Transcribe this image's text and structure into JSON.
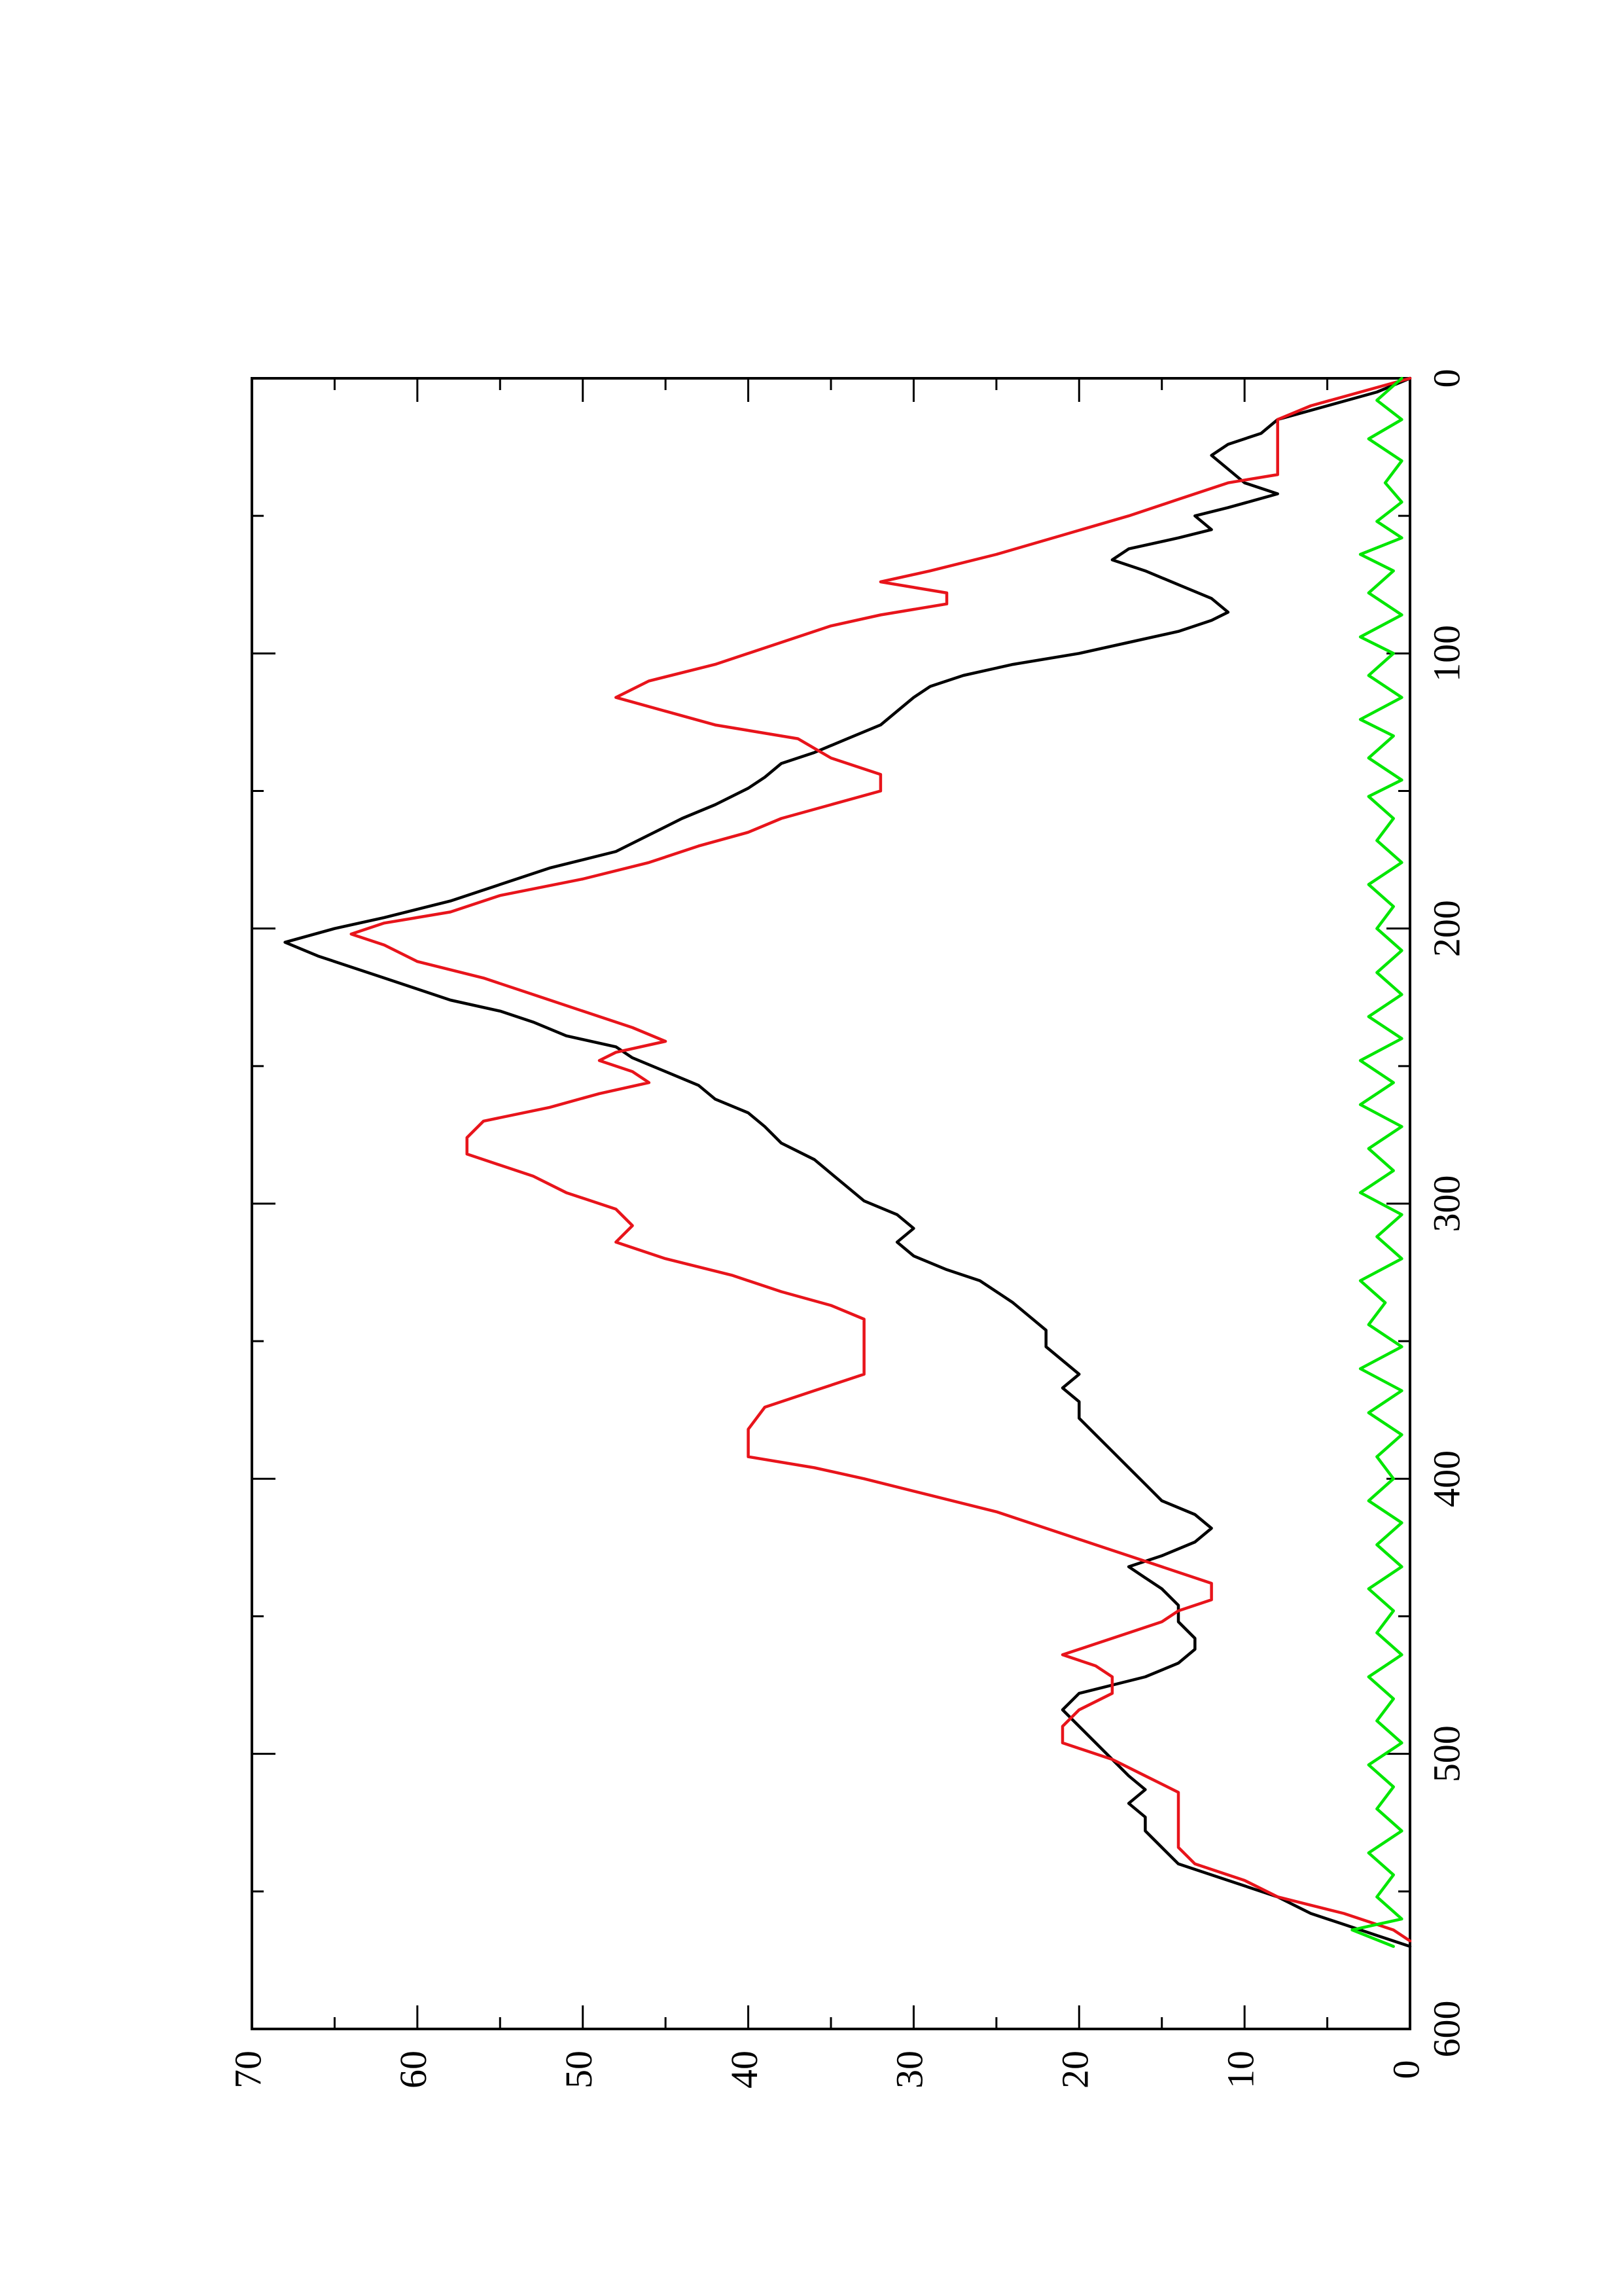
{
  "chart_data": {
    "type": "line",
    "orientation": "rotated-90-ccw",
    "title": "",
    "xlabel": "",
    "ylabel": "",
    "xlim": [
      0,
      600
    ],
    "ylim": [
      0,
      70
    ],
    "x_ticks": [
      0,
      100,
      200,
      300,
      400,
      500,
      600
    ],
    "x_minor_ticks": [
      50,
      150,
      250,
      350,
      450,
      550
    ],
    "y_ticks": [
      0,
      10,
      20,
      30,
      40,
      50,
      60,
      70
    ],
    "y_minor_ticks": [
      5,
      15,
      25,
      35,
      45,
      55,
      65
    ],
    "x_tick_labels": [
      "0",
      "100",
      "200",
      "300",
      "400",
      "500",
      "600"
    ],
    "y_tick_labels": [
      "0",
      "10",
      "20",
      "30",
      "40",
      "50",
      "60",
      "70"
    ],
    "grid": false,
    "legend": "none",
    "series": [
      {
        "color": "#000000",
        "points": [
          [
            0,
            0
          ],
          [
            5,
            2
          ],
          [
            10,
            5
          ],
          [
            15,
            8
          ],
          [
            20,
            9
          ],
          [
            24,
            11
          ],
          [
            28,
            12
          ],
          [
            33,
            11
          ],
          [
            38,
            10
          ],
          [
            42,
            8
          ],
          [
            47,
            11
          ],
          [
            50,
            13
          ],
          [
            55,
            12
          ],
          [
            58,
            14
          ],
          [
            62,
            17
          ],
          [
            66,
            18
          ],
          [
            70,
            16
          ],
          [
            75,
            14
          ],
          [
            80,
            12
          ],
          [
            85,
            11
          ],
          [
            88,
            12
          ],
          [
            92,
            14
          ],
          [
            96,
            17
          ],
          [
            100,
            20
          ],
          [
            104,
            24
          ],
          [
            108,
            27
          ],
          [
            112,
            29
          ],
          [
            116,
            30
          ],
          [
            121,
            31
          ],
          [
            126,
            32
          ],
          [
            131,
            34
          ],
          [
            136,
            36
          ],
          [
            140,
            38
          ],
          [
            145,
            39
          ],
          [
            149,
            40
          ],
          [
            155,
            42
          ],
          [
            160,
            44
          ],
          [
            166,
            46
          ],
          [
            172,
            48
          ],
          [
            178,
            52
          ],
          [
            184,
            55
          ],
          [
            190,
            58
          ],
          [
            196,
            62
          ],
          [
            200,
            65
          ],
          [
            205,
            68
          ],
          [
            210,
            66
          ],
          [
            214,
            64
          ],
          [
            218,
            62
          ],
          [
            222,
            60
          ],
          [
            226,
            58
          ],
          [
            230,
            55
          ],
          [
            234,
            53
          ],
          [
            239,
            51
          ],
          [
            243,
            48
          ],
          [
            247,
            47
          ],
          [
            252,
            45
          ],
          [
            257,
            43
          ],
          [
            262,
            42
          ],
          [
            267,
            40
          ],
          [
            272,
            39
          ],
          [
            278,
            38
          ],
          [
            284,
            36
          ],
          [
            289,
            35
          ],
          [
            294,
            34
          ],
          [
            299,
            33
          ],
          [
            304,
            31
          ],
          [
            309,
            30
          ],
          [
            314,
            31
          ],
          [
            319,
            30
          ],
          [
            324,
            28
          ],
          [
            328,
            26
          ],
          [
            332,
            25
          ],
          [
            336,
            24
          ],
          [
            341,
            23
          ],
          [
            346,
            22
          ],
          [
            352,
            22
          ],
          [
            357,
            21
          ],
          [
            362,
            20
          ],
          [
            367,
            21
          ],
          [
            372,
            20
          ],
          [
            378,
            20
          ],
          [
            384,
            19
          ],
          [
            390,
            18
          ],
          [
            396,
            17
          ],
          [
            402,
            16
          ],
          [
            408,
            15
          ],
          [
            413,
            13
          ],
          [
            418,
            12
          ],
          [
            423,
            13
          ],
          [
            428,
            15
          ],
          [
            432,
            17
          ],
          [
            436,
            16
          ],
          [
            440,
            15
          ],
          [
            446,
            14
          ],
          [
            452,
            14
          ],
          [
            458,
            13
          ],
          [
            462,
            13
          ],
          [
            467,
            14
          ],
          [
            472,
            16
          ],
          [
            478,
            20
          ],
          [
            484,
            21
          ],
          [
            490,
            20
          ],
          [
            496,
            19
          ],
          [
            502,
            18
          ],
          [
            508,
            17
          ],
          [
            513,
            16
          ],
          [
            518,
            17
          ],
          [
            523,
            16
          ],
          [
            528,
            16
          ],
          [
            534,
            15
          ],
          [
            540,
            14
          ],
          [
            546,
            11
          ],
          [
            552,
            8
          ],
          [
            558,
            6
          ],
          [
            562,
            4
          ],
          [
            566,
            2
          ],
          [
            570,
            0
          ]
        ]
      },
      {
        "color": "#e8141b",
        "points": [
          [
            0,
            0
          ],
          [
            5,
            3
          ],
          [
            10,
            6
          ],
          [
            15,
            8
          ],
          [
            20,
            8
          ],
          [
            35,
            8
          ],
          [
            38,
            11
          ],
          [
            44,
            14
          ],
          [
            50,
            17
          ],
          [
            57,
            21
          ],
          [
            64,
            25
          ],
          [
            70,
            29
          ],
          [
            74,
            32
          ],
          [
            78,
            28
          ],
          [
            82,
            28
          ],
          [
            86,
            32
          ],
          [
            90,
            35
          ],
          [
            96,
            38
          ],
          [
            104,
            42
          ],
          [
            110,
            46
          ],
          [
            116,
            48
          ],
          [
            121,
            45
          ],
          [
            126,
            42
          ],
          [
            131,
            37
          ],
          [
            138,
            35
          ],
          [
            144,
            32
          ],
          [
            150,
            32
          ],
          [
            155,
            35
          ],
          [
            160,
            38
          ],
          [
            165,
            40
          ],
          [
            170,
            43
          ],
          [
            176,
            46
          ],
          [
            182,
            50
          ],
          [
            188,
            55
          ],
          [
            194,
            58
          ],
          [
            198,
            62
          ],
          [
            202,
            64
          ],
          [
            206,
            62
          ],
          [
            212,
            60
          ],
          [
            218,
            56
          ],
          [
            224,
            53
          ],
          [
            230,
            50
          ],
          [
            236,
            47
          ],
          [
            241,
            45
          ],
          [
            245,
            48
          ],
          [
            248,
            49
          ],
          [
            252,
            47
          ],
          [
            256,
            46
          ],
          [
            260,
            49
          ],
          [
            265,
            52
          ],
          [
            270,
            56
          ],
          [
            276,
            57
          ],
          [
            282,
            57
          ],
          [
            290,
            53
          ],
          [
            296,
            51
          ],
          [
            302,
            48
          ],
          [
            308,
            47
          ],
          [
            314,
            48
          ],
          [
            320,
            45
          ],
          [
            326,
            41
          ],
          [
            332,
            38
          ],
          [
            337,
            35
          ],
          [
            342,
            33
          ],
          [
            350,
            33
          ],
          [
            362,
            33
          ],
          [
            368,
            36
          ],
          [
            374,
            39
          ],
          [
            382,
            40
          ],
          [
            392,
            40
          ],
          [
            396,
            36
          ],
          [
            400,
            33
          ],
          [
            406,
            29
          ],
          [
            412,
            25
          ],
          [
            418,
            22
          ],
          [
            424,
            19
          ],
          [
            430,
            16
          ],
          [
            434,
            14
          ],
          [
            438,
            12
          ],
          [
            444,
            12
          ],
          [
            448,
            14
          ],
          [
            452,
            15
          ],
          [
            456,
            17
          ],
          [
            460,
            19
          ],
          [
            464,
            21
          ],
          [
            468,
            19
          ],
          [
            472,
            18
          ],
          [
            478,
            18
          ],
          [
            484,
            20
          ],
          [
            490,
            21
          ],
          [
            496,
            21
          ],
          [
            502,
            18
          ],
          [
            508,
            16
          ],
          [
            514,
            14
          ],
          [
            520,
            14
          ],
          [
            526,
            14
          ],
          [
            534,
            14
          ],
          [
            540,
            13
          ],
          [
            546,
            10
          ],
          [
            552,
            8
          ],
          [
            558,
            4
          ],
          [
            564,
            1
          ],
          [
            568,
            0
          ]
        ]
      },
      {
        "color": "#00e600",
        "points": [
          [
            0,
            0.5
          ],
          [
            8,
            2
          ],
          [
            15,
            0.5
          ],
          [
            22,
            2.5
          ],
          [
            30,
            0.5
          ],
          [
            38,
            1.5
          ],
          [
            45,
            0.5
          ],
          [
            52,
            2
          ],
          [
            58,
            0.5
          ],
          [
            64,
            3
          ],
          [
            70,
            1
          ],
          [
            78,
            2.5
          ],
          [
            86,
            0.5
          ],
          [
            94,
            3
          ],
          [
            100,
            1
          ],
          [
            108,
            2.5
          ],
          [
            116,
            0.5
          ],
          [
            124,
            3
          ],
          [
            130,
            1
          ],
          [
            138,
            2.5
          ],
          [
            146,
            0.5
          ],
          [
            152,
            2.5
          ],
          [
            160,
            1
          ],
          [
            168,
            2
          ],
          [
            176,
            0.5
          ],
          [
            184,
            2.5
          ],
          [
            192,
            1
          ],
          [
            200,
            2
          ],
          [
            208,
            0.5
          ],
          [
            216,
            2
          ],
          [
            224,
            0.5
          ],
          [
            232,
            2.5
          ],
          [
            240,
            0.5
          ],
          [
            248,
            3
          ],
          [
            256,
            1
          ],
          [
            264,
            3
          ],
          [
            272,
            0.5
          ],
          [
            280,
            2.5
          ],
          [
            288,
            1
          ],
          [
            296,
            3
          ],
          [
            304,
            0.5
          ],
          [
            312,
            2
          ],
          [
            320,
            0.5
          ],
          [
            328,
            3
          ],
          [
            336,
            1.5
          ],
          [
            344,
            2.5
          ],
          [
            352,
            0.5
          ],
          [
            360,
            3
          ],
          [
            368,
            0.5
          ],
          [
            376,
            2.5
          ],
          [
            384,
            0.5
          ],
          [
            392,
            2
          ],
          [
            400,
            1
          ],
          [
            408,
            2.5
          ],
          [
            416,
            0.5
          ],
          [
            424,
            2
          ],
          [
            432,
            0.5
          ],
          [
            440,
            2.5
          ],
          [
            448,
            1
          ],
          [
            456,
            2
          ],
          [
            464,
            0.5
          ],
          [
            472,
            2.5
          ],
          [
            480,
            1
          ],
          [
            488,
            2
          ],
          [
            496,
            0.5
          ],
          [
            504,
            2.5
          ],
          [
            512,
            1
          ],
          [
            520,
            2
          ],
          [
            528,
            0.5
          ],
          [
            536,
            2.5
          ],
          [
            544,
            1
          ],
          [
            552,
            2
          ],
          [
            560,
            0.5
          ],
          [
            564,
            3.5
          ],
          [
            570,
            1
          ]
        ]
      }
    ]
  }
}
